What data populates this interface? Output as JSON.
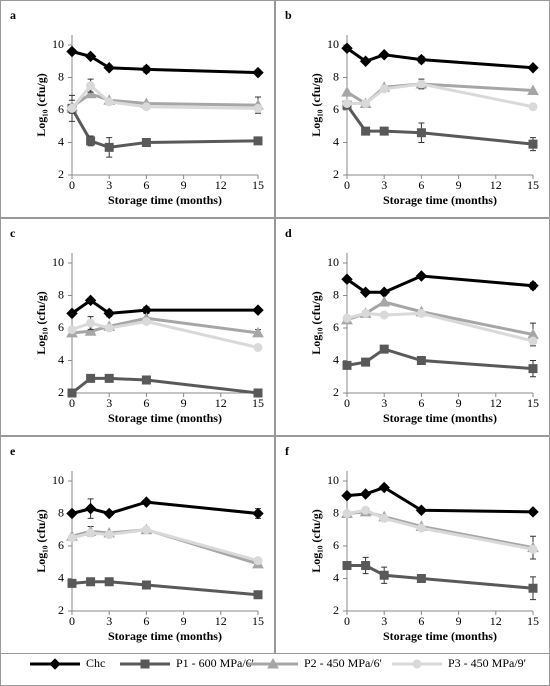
{
  "legend": [
    {
      "name": "Chc",
      "color": "#000000",
      "marker": "diamond"
    },
    {
      "name": "P1 - 600 MPa/6'",
      "color": "#595959",
      "marker": "square"
    },
    {
      "name": "P2 - 450 MPa/6'",
      "color": "#a6a6a6",
      "marker": "triangle"
    },
    {
      "name": "P3 - 450 MPa/9'",
      "color": "#d9d9d9",
      "marker": "circle"
    }
  ],
  "chart_data": [
    {
      "type": "line",
      "label": "a",
      "xlabel": "Storage time (months)",
      "ylabel": "Log₁₀ (cfu/g)",
      "x": [
        0,
        1.5,
        3,
        6,
        15
      ],
      "xlim": [
        0,
        15
      ],
      "xticks": [
        0,
        3,
        6,
        9,
        12,
        15
      ],
      "ylim": [
        2,
        10
      ],
      "yticks": [
        2,
        4,
        6,
        8,
        10
      ],
      "series": [
        {
          "values": [
            9.6,
            9.3,
            8.6,
            8.5,
            8.3
          ],
          "errors": [
            null,
            null,
            null,
            0.2,
            null
          ]
        },
        {
          "values": [
            6.1,
            4.1,
            3.7,
            4.0,
            4.1
          ],
          "errors": [
            0.8,
            0.3,
            0.6,
            null,
            0.2
          ]
        },
        {
          "values": [
            6.2,
            7.0,
            6.6,
            6.4,
            6.3
          ],
          "errors": [
            0.4,
            null,
            null,
            null,
            0.5
          ]
        },
        {
          "values": [
            6.1,
            7.5,
            6.5,
            6.2,
            6.1
          ],
          "errors": [
            null,
            0.4,
            null,
            null,
            null
          ]
        }
      ]
    },
    {
      "type": "line",
      "label": "b",
      "xlabel": "Storage time (months)",
      "ylabel": "Log₁₀ (cfu/g)",
      "x": [
        0,
        1.5,
        3,
        6,
        15
      ],
      "xlim": [
        0,
        15
      ],
      "xticks": [
        0,
        3,
        6,
        9,
        12,
        15
      ],
      "ylim": [
        2,
        10
      ],
      "yticks": [
        2,
        4,
        6,
        8,
        10
      ],
      "series": [
        {
          "values": [
            9.8,
            9.0,
            9.4,
            9.1,
            8.6
          ],
          "errors": [
            null,
            null,
            null,
            0.2,
            null
          ]
        },
        {
          "values": [
            6.3,
            4.7,
            4.7,
            4.6,
            3.9
          ],
          "errors": [
            null,
            null,
            null,
            0.6,
            0.4
          ]
        },
        {
          "values": [
            7.1,
            6.4,
            7.4,
            7.6,
            7.2
          ],
          "errors": [
            null,
            null,
            null,
            null,
            null
          ]
        },
        {
          "values": [
            6.4,
            6.4,
            7.3,
            7.6,
            6.2
          ],
          "errors": [
            null,
            null,
            null,
            0.3,
            null
          ]
        }
      ]
    },
    {
      "type": "line",
      "label": "c",
      "xlabel": "Storage time (months)",
      "ylabel": "Log₁₀ (cfu/g)",
      "x": [
        0,
        1.5,
        3,
        6,
        15
      ],
      "xlim": [
        0,
        15
      ],
      "xticks": [
        0,
        3,
        6,
        9,
        12,
        15
      ],
      "ylim": [
        2,
        10
      ],
      "yticks": [
        2,
        4,
        6,
        8,
        10
      ],
      "series": [
        {
          "values": [
            6.9,
            7.7,
            6.9,
            7.1,
            7.1
          ],
          "errors": [
            null,
            null,
            0.2,
            0.2,
            null
          ]
        },
        {
          "values": [
            2.0,
            2.9,
            2.9,
            2.8,
            2.0
          ],
          "errors": [
            null,
            null,
            null,
            null,
            null
          ]
        },
        {
          "values": [
            5.7,
            5.8,
            6.1,
            6.6,
            5.7
          ],
          "errors": [
            null,
            null,
            null,
            null,
            0.2
          ]
        },
        {
          "values": [
            5.9,
            6.3,
            6.0,
            6.4,
            4.8
          ],
          "errors": [
            null,
            0.4,
            null,
            null,
            null
          ]
        }
      ]
    },
    {
      "type": "line",
      "label": "d",
      "xlabel": "Storage time (months)",
      "ylabel": "Log₁₀ (cfu/g)",
      "x": [
        0,
        1.5,
        3,
        6,
        15
      ],
      "xlim": [
        0,
        15
      ],
      "xticks": [
        0,
        3,
        6,
        9,
        12,
        15
      ],
      "ylim": [
        2,
        10
      ],
      "yticks": [
        2,
        4,
        6,
        8,
        10
      ],
      "series": [
        {
          "values": [
            9.0,
            8.2,
            8.2,
            9.2,
            8.6
          ],
          "errors": [
            null,
            null,
            null,
            null,
            0.2
          ]
        },
        {
          "values": [
            3.7,
            3.9,
            4.7,
            4.0,
            3.5
          ],
          "errors": [
            null,
            null,
            null,
            null,
            0.5
          ]
        },
        {
          "values": [
            6.5,
            6.9,
            7.6,
            7.0,
            5.6
          ],
          "errors": [
            null,
            null,
            null,
            null,
            0.7
          ]
        },
        {
          "values": [
            6.6,
            6.9,
            6.8,
            6.9,
            5.2
          ],
          "errors": [
            null,
            null,
            null,
            null,
            null
          ]
        }
      ]
    },
    {
      "type": "line",
      "label": "e",
      "xlabel": "Storage time (months)",
      "ylabel": "Log₁₀ (cfu/g)",
      "x": [
        0,
        1.5,
        3,
        6,
        15
      ],
      "xlim": [
        0,
        15
      ],
      "xticks": [
        0,
        3,
        6,
        9,
        12,
        15
      ],
      "ylim": [
        2,
        10
      ],
      "yticks": [
        2,
        4,
        6,
        8,
        10
      ],
      "series": [
        {
          "values": [
            8.0,
            8.3,
            8.0,
            8.7,
            8.0
          ],
          "errors": [
            null,
            0.6,
            null,
            null,
            0.3
          ]
        },
        {
          "values": [
            3.7,
            3.8,
            3.8,
            3.6,
            3.0
          ],
          "errors": [
            null,
            null,
            null,
            null,
            null
          ]
        },
        {
          "values": [
            6.6,
            6.9,
            6.8,
            7.0,
            4.9
          ],
          "errors": [
            null,
            0.3,
            null,
            null,
            null
          ]
        },
        {
          "values": [
            6.5,
            6.8,
            6.7,
            7.0,
            5.1
          ],
          "errors": [
            null,
            null,
            null,
            null,
            null
          ]
        }
      ]
    },
    {
      "type": "line",
      "label": "f",
      "xlabel": "Storage time (months)",
      "ylabel": "Log₁₀ (cfu/g)",
      "x": [
        0,
        1.5,
        3,
        6,
        15
      ],
      "xlim": [
        0,
        15
      ],
      "xticks": [
        0,
        3,
        6,
        9,
        12,
        15
      ],
      "ylim": [
        2,
        10
      ],
      "yticks": [
        2,
        4,
        6,
        8,
        10
      ],
      "series": [
        {
          "values": [
            9.1,
            9.2,
            9.6,
            8.2,
            8.1
          ],
          "errors": [
            null,
            null,
            null,
            null,
            null
          ]
        },
        {
          "values": [
            4.8,
            4.8,
            4.2,
            4.0,
            3.4
          ],
          "errors": [
            null,
            0.5,
            0.5,
            null,
            0.7
          ]
        },
        {
          "values": [
            8.0,
            8.1,
            7.8,
            7.2,
            5.9
          ],
          "errors": [
            null,
            null,
            null,
            null,
            0.7
          ]
        },
        {
          "values": [
            8.0,
            8.2,
            7.7,
            7.1,
            5.8
          ],
          "errors": [
            null,
            null,
            null,
            null,
            null
          ]
        }
      ]
    }
  ]
}
